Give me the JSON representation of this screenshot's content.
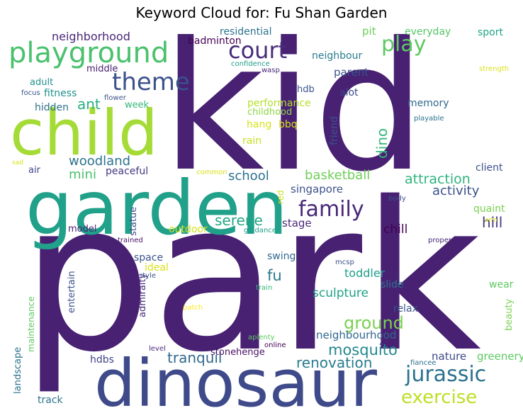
{
  "chart_data": {
    "type": "wordcloud",
    "title": "Keyword Cloud for: Fu Shan Garden",
    "words": [
      {
        "text": "kid",
        "weight": 1.0,
        "color": "#482173"
      },
      {
        "text": "park",
        "weight": 0.98,
        "color": "#482173"
      },
      {
        "text": "garden",
        "weight": 0.6,
        "color": "#21a08a"
      },
      {
        "text": "child",
        "weight": 0.55,
        "color": "#a5db36"
      },
      {
        "text": "dinosaur",
        "weight": 0.5,
        "color": "#3f4a8a"
      },
      {
        "text": "playground",
        "weight": 0.3,
        "color": "#4ac16d"
      },
      {
        "text": "theme",
        "weight": 0.26,
        "color": "#3b528b"
      },
      {
        "text": "court",
        "weight": 0.24,
        "color": "#472c7a"
      },
      {
        "text": "play",
        "weight": 0.24,
        "color": "#5ec962"
      },
      {
        "text": "family",
        "weight": 0.24,
        "color": "#482878"
      },
      {
        "text": "jurassic",
        "weight": 0.23,
        "color": "#2c728e"
      },
      {
        "text": "exercise",
        "weight": 0.2,
        "color": "#bddf26"
      },
      {
        "text": "ground",
        "weight": 0.19,
        "color": "#7ad151"
      },
      {
        "text": "mosquito",
        "weight": 0.17,
        "color": "#23888e"
      },
      {
        "text": "renovation",
        "weight": 0.17,
        "color": "#287c8e"
      },
      {
        "text": "serene",
        "weight": 0.17,
        "color": "#22a884"
      },
      {
        "text": "fu",
        "weight": 0.17,
        "color": "#2a788e"
      },
      {
        "text": "tranquil",
        "weight": 0.16,
        "color": "#31688e"
      },
      {
        "text": "hill",
        "weight": 0.16,
        "color": "#443983"
      },
      {
        "text": "ant",
        "weight": 0.16,
        "color": "#27ad81"
      },
      {
        "text": "dino",
        "weight": 0.16,
        "color": "#35b779"
      },
      {
        "text": "attraction",
        "weight": 0.15,
        "color": "#2fb47c"
      },
      {
        "text": "activity",
        "weight": 0.15,
        "color": "#3b528b"
      },
      {
        "text": "school",
        "weight": 0.15,
        "color": "#2c728e"
      },
      {
        "text": "basketball",
        "weight": 0.15,
        "color": "#6ece58"
      },
      {
        "text": "woodland",
        "weight": 0.14,
        "color": "#2c728e"
      },
      {
        "text": "mini",
        "weight": 0.14,
        "color": "#4ac16d"
      },
      {
        "text": "chill",
        "weight": 0.13,
        "color": "#440154"
      },
      {
        "text": "sculpture",
        "weight": 0.13,
        "color": "#1fa187"
      },
      {
        "text": "toddler",
        "weight": 0.12,
        "color": "#1f9e89"
      },
      {
        "text": "nature",
        "weight": 0.12,
        "color": "#3e4a89"
      },
      {
        "text": "neighborhood",
        "weight": 0.12,
        "color": "#482878"
      },
      {
        "text": "parent",
        "weight": 0.12,
        "color": "#39568c"
      },
      {
        "text": "singapore",
        "weight": 0.12,
        "color": "#3b528b"
      },
      {
        "text": "neighbourhood",
        "weight": 0.12,
        "color": "#31688e"
      },
      {
        "text": "greenery",
        "weight": 0.11,
        "color": "#5ec962"
      },
      {
        "text": "stage",
        "weight": 0.11,
        "color": "#482878"
      },
      {
        "text": "residential",
        "weight": 0.11,
        "color": "#2c728e"
      },
      {
        "text": "badminton",
        "weight": 0.11,
        "color": "#440154"
      },
      {
        "text": "neighbour",
        "weight": 0.11,
        "color": "#287d8e"
      },
      {
        "text": "pit",
        "weight": 0.11,
        "color": "#6ece58"
      },
      {
        "text": "everyday",
        "weight": 0.11,
        "color": "#54c568"
      },
      {
        "text": "sport",
        "weight": 0.11,
        "color": "#20a386"
      },
      {
        "text": "hang",
        "weight": 0.11,
        "color": "#d8e219"
      },
      {
        "text": "bbq",
        "weight": 0.11,
        "color": "#d8e219"
      },
      {
        "text": "memory",
        "weight": 0.11,
        "color": "#31688e"
      },
      {
        "text": "fitness",
        "weight": 0.11,
        "color": "#21918c"
      },
      {
        "text": "hidden",
        "weight": 0.1,
        "color": "#2c728e"
      },
      {
        "text": "adult",
        "weight": 0.1,
        "color": "#21918c"
      },
      {
        "text": "middle",
        "weight": 0.1,
        "color": "#481f70"
      },
      {
        "text": "week",
        "weight": 0.1,
        "color": "#35b779"
      },
      {
        "text": "alot",
        "weight": 0.1,
        "color": "#3e4a89"
      },
      {
        "text": "performance",
        "weight": 0.1,
        "color": "#b5de2b"
      },
      {
        "text": "childhood",
        "weight": 0.1,
        "color": "#8fd744"
      },
      {
        "text": "friend",
        "weight": 0.1,
        "color": "#3b528b"
      },
      {
        "text": "rain",
        "weight": 0.1,
        "color": "#c8e020"
      },
      {
        "text": "client",
        "weight": 0.1,
        "color": "#3b528b"
      },
      {
        "text": "peaceful",
        "weight": 0.1,
        "color": "#453781"
      },
      {
        "text": "air",
        "weight": 0.1,
        "color": "#414487"
      },
      {
        "text": "quaint",
        "weight": 0.1,
        "color": "#7ad151"
      },
      {
        "text": "relax",
        "weight": 0.1,
        "color": "#39568c"
      },
      {
        "text": "slide",
        "weight": 0.1,
        "color": "#2c728e"
      },
      {
        "text": "swing",
        "weight": 0.1,
        "color": "#31688e"
      },
      {
        "text": "space",
        "weight": 0.1,
        "color": "#3b528b"
      },
      {
        "text": "ideal",
        "weight": 0.1,
        "color": "#d8e219"
      },
      {
        "text": "outdoor",
        "weight": 0.1,
        "color": "#d2e21b"
      },
      {
        "text": "model",
        "weight": 0.1,
        "color": "#482475"
      },
      {
        "text": "wear",
        "weight": 0.1,
        "color": "#5ec962"
      },
      {
        "text": "track",
        "weight": 0.1,
        "color": "#2c728e"
      },
      {
        "text": "hdbs",
        "weight": 0.09,
        "color": "#414487"
      },
      {
        "text": "stonehenge",
        "weight": 0.09,
        "color": "#471164"
      },
      {
        "text": "statue",
        "weight": 0.09,
        "color": "#3e4a89"
      },
      {
        "text": "admiralty",
        "weight": 0.09,
        "color": "#482878"
      },
      {
        "text": "entertain",
        "weight": 0.09,
        "color": "#3b528b"
      },
      {
        "text": "maintenance",
        "weight": 0.09,
        "color": "#5ec962"
      },
      {
        "text": "landscape",
        "weight": 0.09,
        "color": "#2c728e"
      },
      {
        "text": "beauty",
        "weight": 0.09,
        "color": "#7ad151"
      },
      {
        "text": "hdb",
        "weight": 0.09,
        "color": "#3b528b"
      },
      {
        "text": "red",
        "weight": 0.09,
        "color": "#c8e020"
      },
      {
        "text": "flower",
        "weight": 0.07,
        "color": "#3b528b"
      },
      {
        "text": "focus",
        "weight": 0.07,
        "color": "#3b528b"
      },
      {
        "text": "confidence",
        "weight": 0.07,
        "color": "#1f9e89"
      },
      {
        "text": "wasp",
        "weight": 0.07,
        "color": "#482878"
      },
      {
        "text": "strength",
        "weight": 0.07,
        "color": "#d8e219"
      },
      {
        "text": "playable",
        "weight": 0.07,
        "color": "#2c728e"
      },
      {
        "text": "sad",
        "weight": 0.07,
        "color": "#d8e219"
      },
      {
        "text": "common",
        "weight": 0.07,
        "color": "#d8e219"
      },
      {
        "text": "body",
        "weight": 0.07,
        "color": "#3b528b"
      },
      {
        "text": "arm",
        "weight": 0.07,
        "color": "#d8e219"
      },
      {
        "text": "trained",
        "weight": 0.07,
        "color": "#471164"
      },
      {
        "text": "guidance",
        "weight": 0.07,
        "color": "#1f9e89"
      },
      {
        "text": "proper",
        "weight": 0.07,
        "color": "#482878"
      },
      {
        "text": "style",
        "weight": 0.07,
        "color": "#3b528b"
      },
      {
        "text": "mcsp",
        "weight": 0.07,
        "color": "#3b528b"
      },
      {
        "text": "train",
        "weight": 0.07,
        "color": "#35b779"
      },
      {
        "text": "patch",
        "weight": 0.07,
        "color": "#fde725"
      },
      {
        "text": "aplenty",
        "weight": 0.07,
        "color": "#5ec962"
      },
      {
        "text": "online",
        "weight": 0.07,
        "color": "#440154"
      },
      {
        "text": "level",
        "weight": 0.07,
        "color": "#482878"
      },
      {
        "text": "fiancee",
        "weight": 0.07,
        "color": "#2c728e"
      }
    ]
  }
}
